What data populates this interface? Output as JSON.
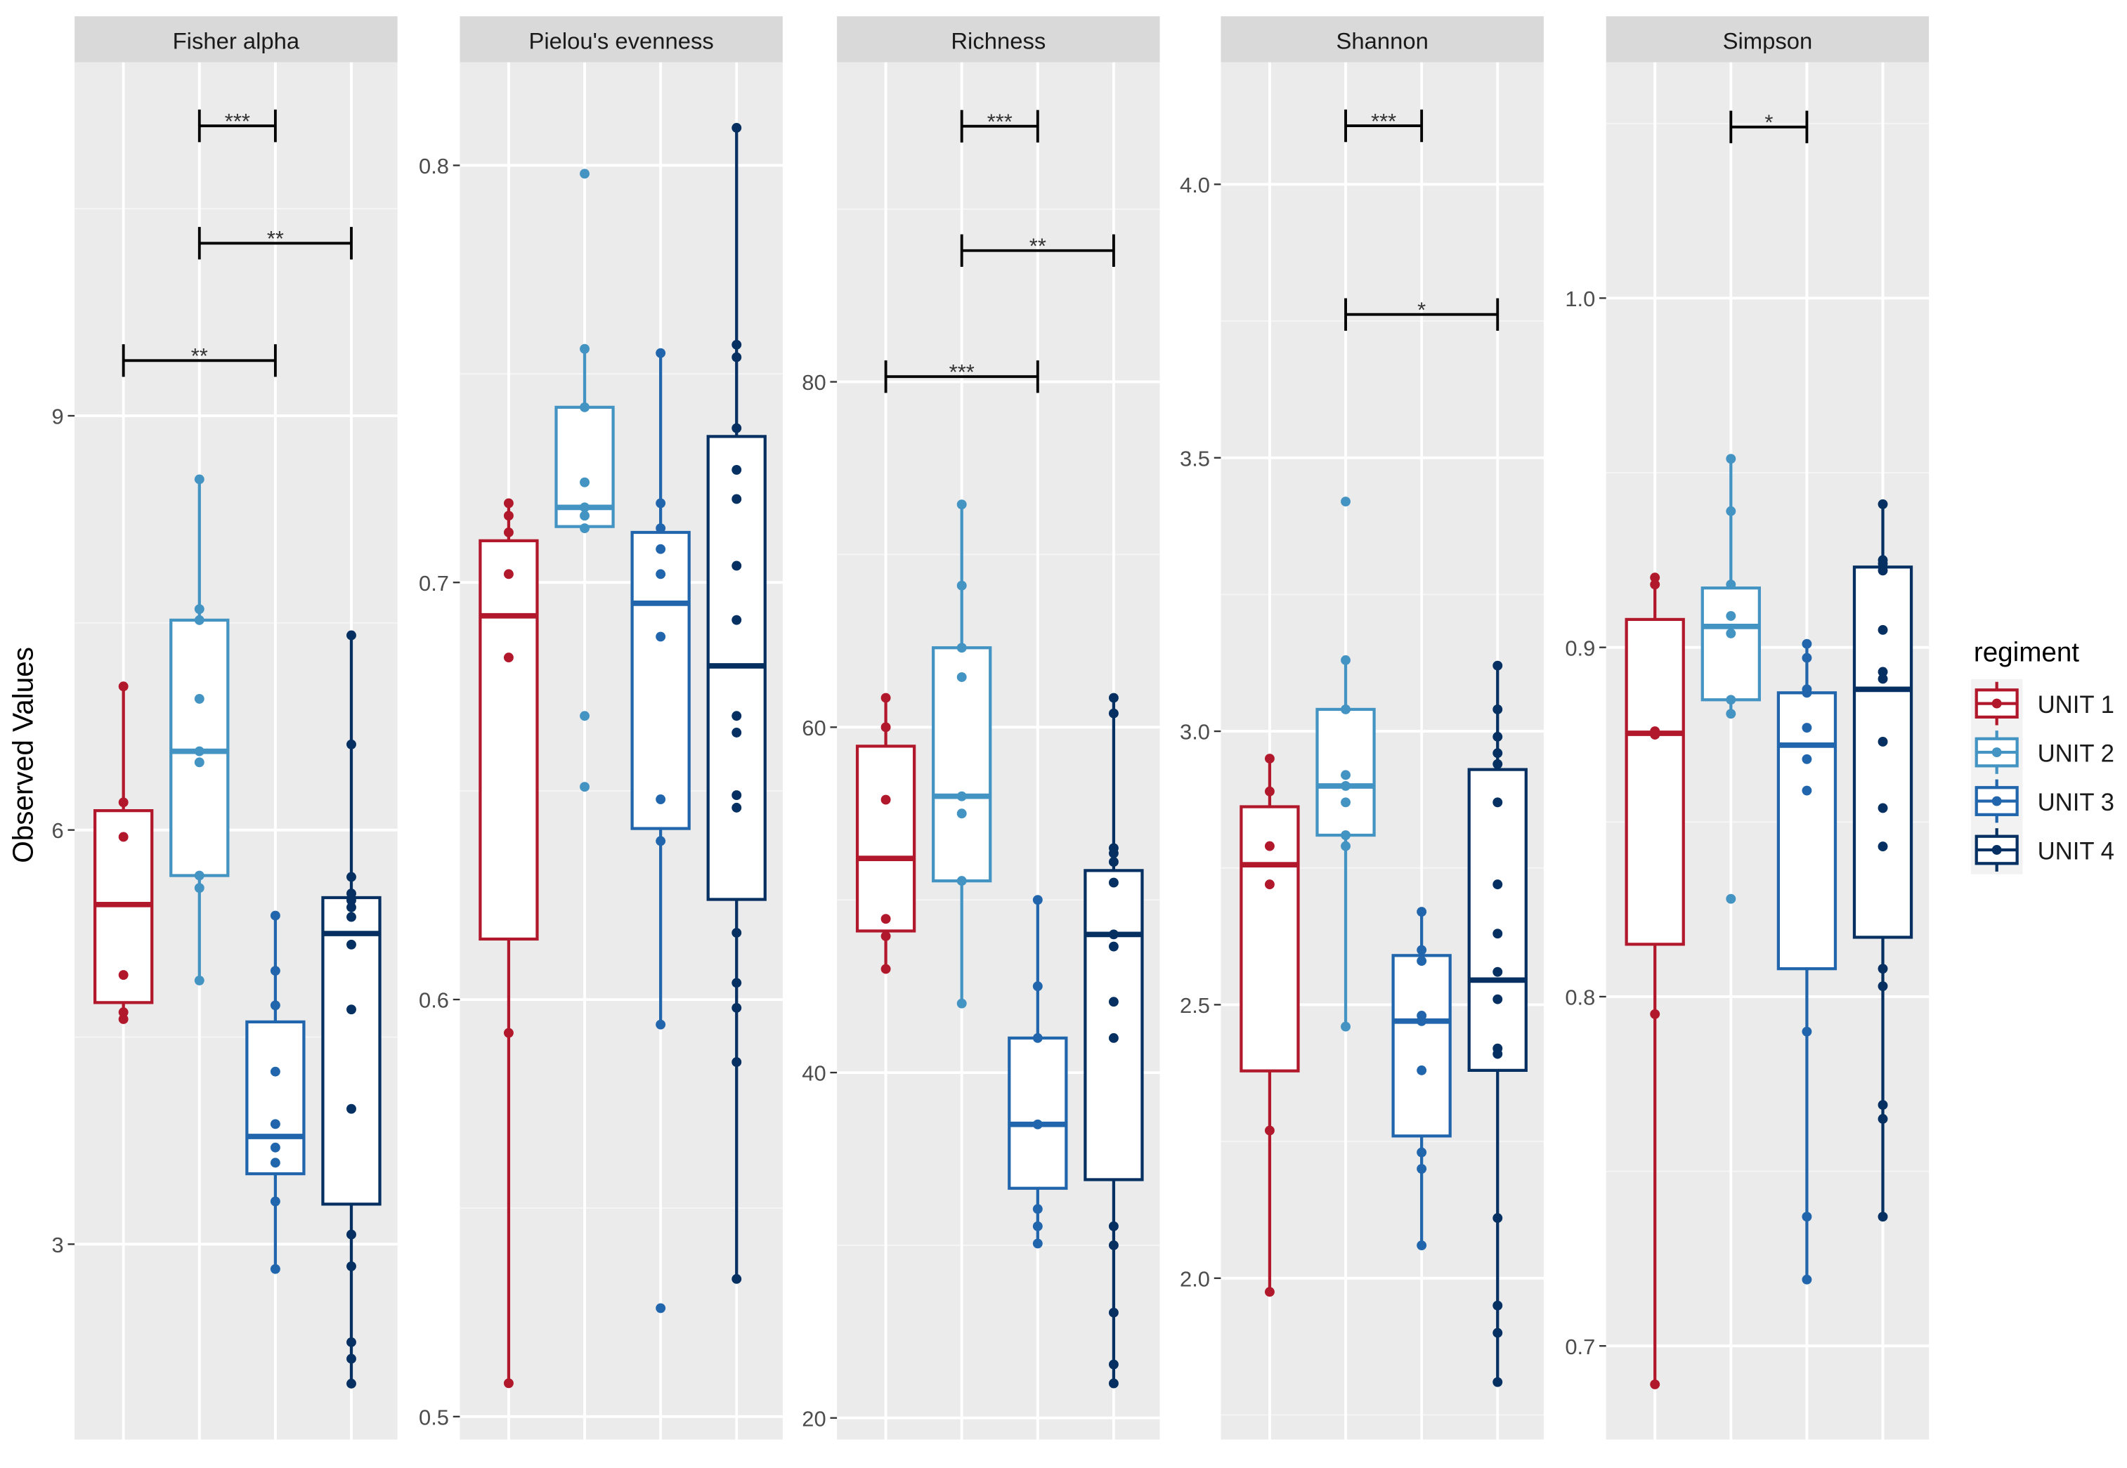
{
  "chart_data": {
    "type": "box",
    "ylabel": "Observed Values",
    "legend": {
      "title": "regiment",
      "placement": "right",
      "entries": [
        "UNIT 1",
        "UNIT 2",
        "UNIT 3",
        "UNIT 4"
      ]
    },
    "colors": [
      "#B2182B",
      "#4393C3",
      "#2166AC",
      "#053061"
    ],
    "panels": [
      {
        "title": "Fisher alpha",
        "ylim": [
          1.585,
          11.56
        ],
        "ticks": [
          {
            "v": 3,
            "label": "3"
          },
          {
            "v": 6,
            "label": "6"
          },
          {
            "v": 9,
            "label": "9"
          }
        ],
        "groups": [
          {
            "box": [
              4.63,
              4.75,
              5.46,
              6.14,
              7.04
            ],
            "points": [
              7.04,
              6.2,
              5.95,
              4.95,
              4.68,
              4.63
            ]
          },
          {
            "box": [
              4.91,
              5.67,
              6.57,
              7.52,
              8.54
            ],
            "points": [
              8.54,
              7.6,
              7.52,
              6.95,
              6.57,
              6.49,
              5.67,
              5.58,
              4.91
            ]
          },
          {
            "box": [
              2.82,
              3.51,
              3.78,
              4.61,
              5.38
            ],
            "points": [
              5.38,
              4.98,
              4.73,
              4.25,
              3.87,
              3.7,
              3.59,
              3.31,
              2.82
            ]
          },
          {
            "box": [
              1.99,
              3.29,
              5.25,
              5.51,
              7.41
            ],
            "points": [
              7.41,
              6.62,
              5.66,
              5.54,
              5.49,
              5.44,
              5.37,
              5.17,
              4.7,
              3.98,
              3.07,
              2.84,
              2.29,
              2.17,
              1.99
            ]
          }
        ],
        "significance": [
          {
            "from": 2,
            "to": 3,
            "y": 11.1,
            "label": "***"
          },
          {
            "from": 2,
            "to": 4,
            "y": 10.25,
            "label": "**"
          },
          {
            "from": 1,
            "to": 3,
            "y": 9.4,
            "label": "**"
          }
        ]
      },
      {
        "title": "Pielou's evenness",
        "ylim": [
          0.4945,
          0.8247
        ],
        "ticks": [
          {
            "v": 0.5,
            "label": "0.5"
          },
          {
            "v": 0.6,
            "label": "0.6"
          },
          {
            "v": 0.7,
            "label": "0.7"
          },
          {
            "v": 0.8,
            "label": "0.8"
          }
        ],
        "groups": [
          {
            "box": [
              0.508,
              0.6145,
              0.692,
              0.71,
              0.719
            ],
            "points": [
              0.719,
              0.716,
              0.712,
              0.702,
              0.682,
              0.592,
              0.508
            ]
          },
          {
            "box": [
              0.7134,
              0.7134,
              0.718,
              0.742,
              0.756
            ],
            "points": [
              0.798,
              0.756,
              0.742,
              0.724,
              0.718,
              0.716,
              0.713,
              0.668,
              0.651
            ]
          },
          {
            "box": [
              0.594,
              0.641,
              0.695,
              0.712,
              0.755
            ],
            "points": [
              0.755,
              0.719,
              0.713,
              0.708,
              0.702,
              0.687,
              0.648,
              0.638,
              0.594,
              0.526
            ]
          },
          {
            "box": [
              0.533,
              0.624,
              0.68,
              0.735,
              0.809
            ],
            "points": [
              0.809,
              0.757,
              0.754,
              0.737,
              0.727,
              0.72,
              0.704,
              0.691,
              0.668,
              0.664,
              0.649,
              0.646,
              0.616,
              0.604,
              0.598,
              0.585,
              0.533
            ]
          }
        ],
        "significance": []
      },
      {
        "title": "Richness",
        "ylim": [
          18.75,
          98.5
        ],
        "ticks": [
          {
            "v": 20,
            "label": "20"
          },
          {
            "v": 40,
            "label": "40"
          },
          {
            "v": 60,
            "label": "60"
          },
          {
            "v": 80,
            "label": "80"
          }
        ],
        "groups": [
          {
            "box": [
              46.0,
              48.2,
              52.4,
              58.9,
              61.7
            ],
            "points": [
              61.7,
              60.0,
              55.8,
              48.9,
              47.9,
              46.0
            ]
          },
          {
            "box": [
              44.0,
              51.1,
              56.0,
              64.6,
              72.9
            ],
            "points": [
              72.9,
              68.2,
              64.6,
              62.9,
              56.0,
              55.0,
              51.1,
              44.0
            ]
          },
          {
            "box": [
              30.1,
              33.3,
              37.0,
              42.0,
              50.0
            ],
            "points": [
              50.0,
              45.0,
              42.0,
              37.0,
              32.1,
              31.1,
              30.1
            ]
          },
          {
            "box": [
              22.0,
              33.8,
              48.0,
              51.7,
              61.7
            ],
            "points": [
              61.7,
              60.8,
              53.0,
              52.7,
              52.2,
              51.0,
              48.0,
              47.3,
              44.1,
              42.0,
              31.1,
              30.0,
              26.1,
              23.1,
              22.0
            ]
          }
        ],
        "significance": [
          {
            "from": 2,
            "to": 3,
            "y": 94.8,
            "label": "***"
          },
          {
            "from": 2,
            "to": 4,
            "y": 87.6,
            "label": "**"
          },
          {
            "from": 1,
            "to": 3,
            "y": 80.3,
            "label": "***"
          }
        ]
      },
      {
        "title": "Shannon",
        "ylim": [
          1.705,
          4.223
        ],
        "ticks": [
          {
            "v": 2.0,
            "label": "2.0"
          },
          {
            "v": 2.5,
            "label": "2.5"
          },
          {
            "v": 3.0,
            "label": "3.0"
          },
          {
            "v": 3.5,
            "label": "3.5"
          },
          {
            "v": 4.0,
            "label": "4.0"
          }
        ],
        "groups": [
          {
            "box": [
              1.975,
              2.379,
              2.756,
              2.862,
              2.95
            ],
            "points": [
              2.95,
              2.89,
              2.79,
              2.72,
              2.27,
              1.975
            ]
          },
          {
            "box": [
              2.46,
              2.81,
              2.9,
              3.04,
              3.13
            ],
            "points": [
              3.42,
              3.13,
              3.04,
              2.92,
              2.9,
              2.87,
              2.81,
              2.79,
              2.46
            ]
          },
          {
            "box": [
              2.06,
              2.26,
              2.47,
              2.59,
              2.67
            ],
            "points": [
              2.67,
              2.6,
              2.58,
              2.48,
              2.47,
              2.38,
              2.23,
              2.2,
              2.06
            ]
          },
          {
            "box": [
              1.81,
              2.38,
              2.545,
              2.93,
              3.12
            ],
            "points": [
              3.12,
              3.04,
              2.99,
              2.96,
              2.94,
              2.87,
              2.72,
              2.63,
              2.56,
              2.51,
              2.42,
              2.41,
              2.11,
              1.95,
              1.9,
              1.81
            ]
          }
        ],
        "significance": [
          {
            "from": 2,
            "to": 3,
            "y": 4.107,
            "label": "***"
          },
          {
            "from": 2,
            "to": 4,
            "y": 3.762,
            "label": "*"
          }
        ]
      },
      {
        "title": "Simpson",
        "ylim": [
          0.6732,
          1.0675
        ],
        "ticks": [
          {
            "v": 0.7,
            "label": "0.7"
          },
          {
            "v": 0.8,
            "label": "0.8"
          },
          {
            "v": 0.9,
            "label": "0.9"
          },
          {
            "v": 1.0,
            "label": "1.0"
          }
        ],
        "groups": [
          {
            "box": [
              0.689,
              0.815,
              0.8754,
              0.908,
              0.92
            ],
            "points": [
              0.92,
              0.918,
              0.876,
              0.875,
              0.795,
              0.689
            ]
          },
          {
            "box": [
              0.881,
              0.885,
              0.906,
              0.917,
              0.954
            ],
            "points": [
              0.954,
              0.939,
              0.918,
              0.909,
              0.904,
              0.885,
              0.881,
              0.828
            ]
          },
          {
            "box": [
              0.719,
              0.808,
              0.872,
              0.887,
              0.901
            ],
            "points": [
              0.901,
              0.897,
              0.888,
              0.887,
              0.877,
              0.868,
              0.859,
              0.79,
              0.737,
              0.719
            ]
          },
          {
            "box": [
              0.737,
              0.817,
              0.888,
              0.923,
              0.941
            ],
            "points": [
              0.941,
              0.925,
              0.924,
              0.922,
              0.905,
              0.893,
              0.891,
              0.873,
              0.854,
              0.843,
              0.808,
              0.803,
              0.769,
              0.765,
              0.737
            ]
          }
        ],
        "significance": [
          {
            "from": 2,
            "to": 3,
            "y": 1.049,
            "label": "*"
          }
        ]
      }
    ]
  }
}
